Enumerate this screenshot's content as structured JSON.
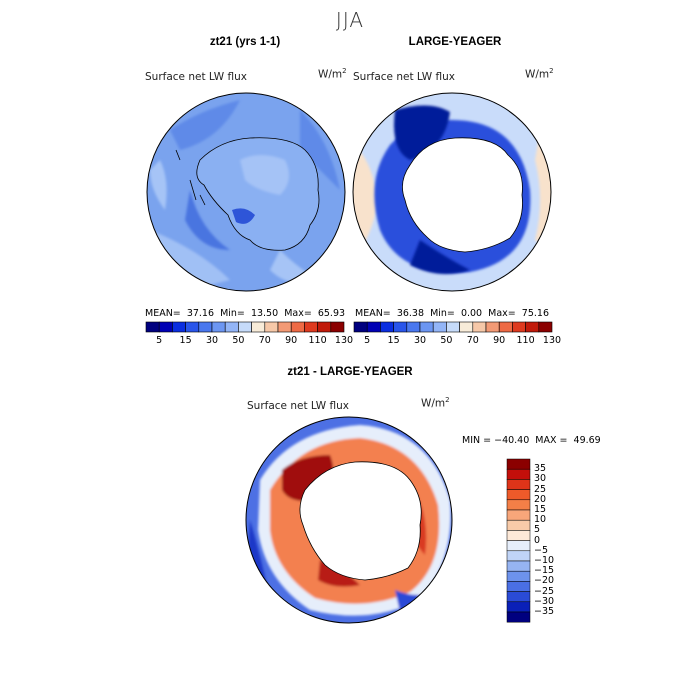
{
  "title": "JJA",
  "panel_left": {
    "title": "zt21 (yrs 1-1)",
    "field": "Surface net LW flux",
    "units_base": "W/m",
    "units_exp": "2",
    "mean_label": "MEAN=",
    "mean": "37.16",
    "min_label": "Min=",
    "min": "13.50",
    "max_label": "Max=",
    "max": "65.93"
  },
  "panel_right": {
    "title": "LARGE-YEAGER",
    "field": "Surface net LW flux",
    "units_base": "W/m",
    "units_exp": "2",
    "mean_label": "MEAN=",
    "mean": "36.38",
    "min_label": "Min=",
    "min": "0.00",
    "max_label": "Max=",
    "max": "75.16"
  },
  "abs_colorbar": {
    "colors": [
      "#00007f",
      "#0000b4",
      "#0a2ee0",
      "#2955ea",
      "#4a78ef",
      "#6c96f2",
      "#93b5f7",
      "#c6dbfa",
      "#f8ecd9",
      "#f6c8a8",
      "#f39a75",
      "#ee6a45",
      "#de3a1f",
      "#c11a0a",
      "#8b0000"
    ],
    "tick_labels": [
      "5",
      "15",
      "30",
      "50",
      "70",
      "90",
      "110",
      "130"
    ]
  },
  "panel_diff": {
    "title": "zt21 - LARGE-YEAGER",
    "field": "Surface net LW flux",
    "units_base": "W/m",
    "units_exp": "2",
    "minmax_text": "MIN = −40.40  MAX =  49.69"
  },
  "diff_colorbar": {
    "colors": [
      "#8b0000",
      "#c30f0a",
      "#de3419",
      "#ee5a2a",
      "#f47f47",
      "#f8a67a",
      "#f8cba9",
      "#fde9d8",
      "#e6eefb",
      "#c0d4f7",
      "#96b4f2",
      "#6d92ec",
      "#4a6fe4",
      "#2a4bd6",
      "#0a20b8",
      "#00007f"
    ],
    "labels": [
      "35",
      "30",
      "25",
      "20",
      "15",
      "10",
      "5",
      "0",
      "−5",
      "−10",
      "−15",
      "−20",
      "−25",
      "−30",
      "−35"
    ]
  }
}
